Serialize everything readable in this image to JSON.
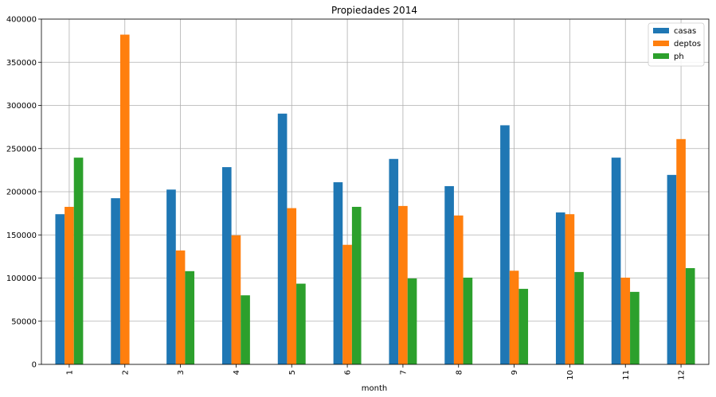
{
  "chart_data": {
    "type": "bar",
    "title": "Propiedades 2014",
    "xlabel": "month",
    "ylabel": "",
    "categories": [
      "1",
      "2",
      "3",
      "4",
      "5",
      "6",
      "7",
      "8",
      "9",
      "10",
      "11",
      "12"
    ],
    "series": [
      {
        "name": "casas",
        "color": "#1f77b4",
        "values": [
          174000,
          192500,
          202500,
          228500,
          290500,
          211000,
          238000,
          206500,
          277000,
          176000,
          239500,
          219500
        ]
      },
      {
        "name": "deptos",
        "color": "#ff7f0e",
        "values": [
          182500,
          382000,
          132000,
          149500,
          181000,
          138500,
          183500,
          172500,
          108500,
          174000,
          100500,
          261000
        ]
      },
      {
        "name": "ph",
        "color": "#2ca02c",
        "values": [
          239500,
          0,
          108000,
          80000,
          93500,
          182500,
          99500,
          100500,
          87500,
          107000,
          84000,
          111500
        ]
      }
    ],
    "ylim": [
      0,
      400000
    ],
    "yticks": [
      0,
      50000,
      100000,
      150000,
      200000,
      250000,
      300000,
      350000,
      400000
    ],
    "grid": true,
    "legend_position": "top-right"
  }
}
